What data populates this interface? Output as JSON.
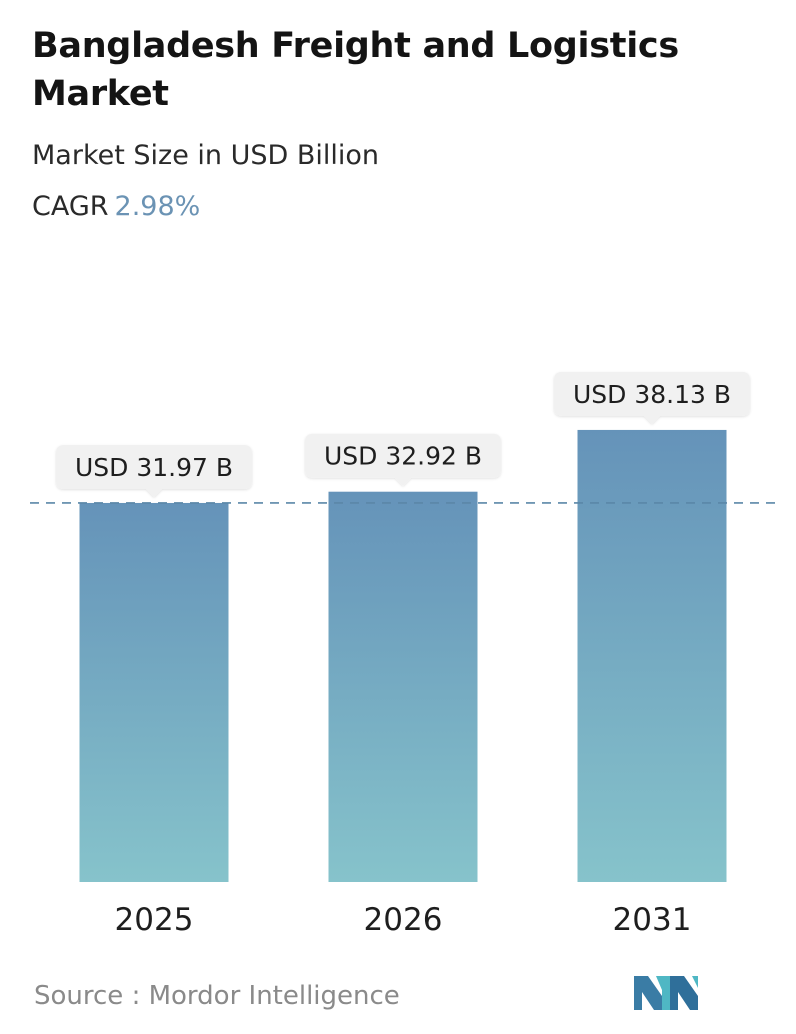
{
  "header": {
    "title": "Bangladesh Freight and Logistics Market",
    "subtitle": "Market Size in USD Billion",
    "cagr_label": "CAGR",
    "cagr_value": "2.98%"
  },
  "footer": {
    "source": "Source :  Mordor Intelligence",
    "logo_icon": "mordor-intelligence-logo"
  },
  "colors": {
    "bar_top": "#6593b9",
    "bar_bottom": "#86c3cb",
    "accent": "#6b93b4",
    "reference_line": "#5b87a8",
    "label_bg": "#f1f1f1"
  },
  "chart_data": {
    "type": "bar",
    "categories": [
      "2025",
      "2026",
      "2031"
    ],
    "values": [
      31.97,
      32.92,
      38.13
    ],
    "value_labels": [
      "USD 31.97 B",
      "USD 32.92 B",
      "USD 38.13 B"
    ],
    "ylabel": "",
    "xlabel": "",
    "grid": false,
    "reference_line_value": 31.97
  }
}
